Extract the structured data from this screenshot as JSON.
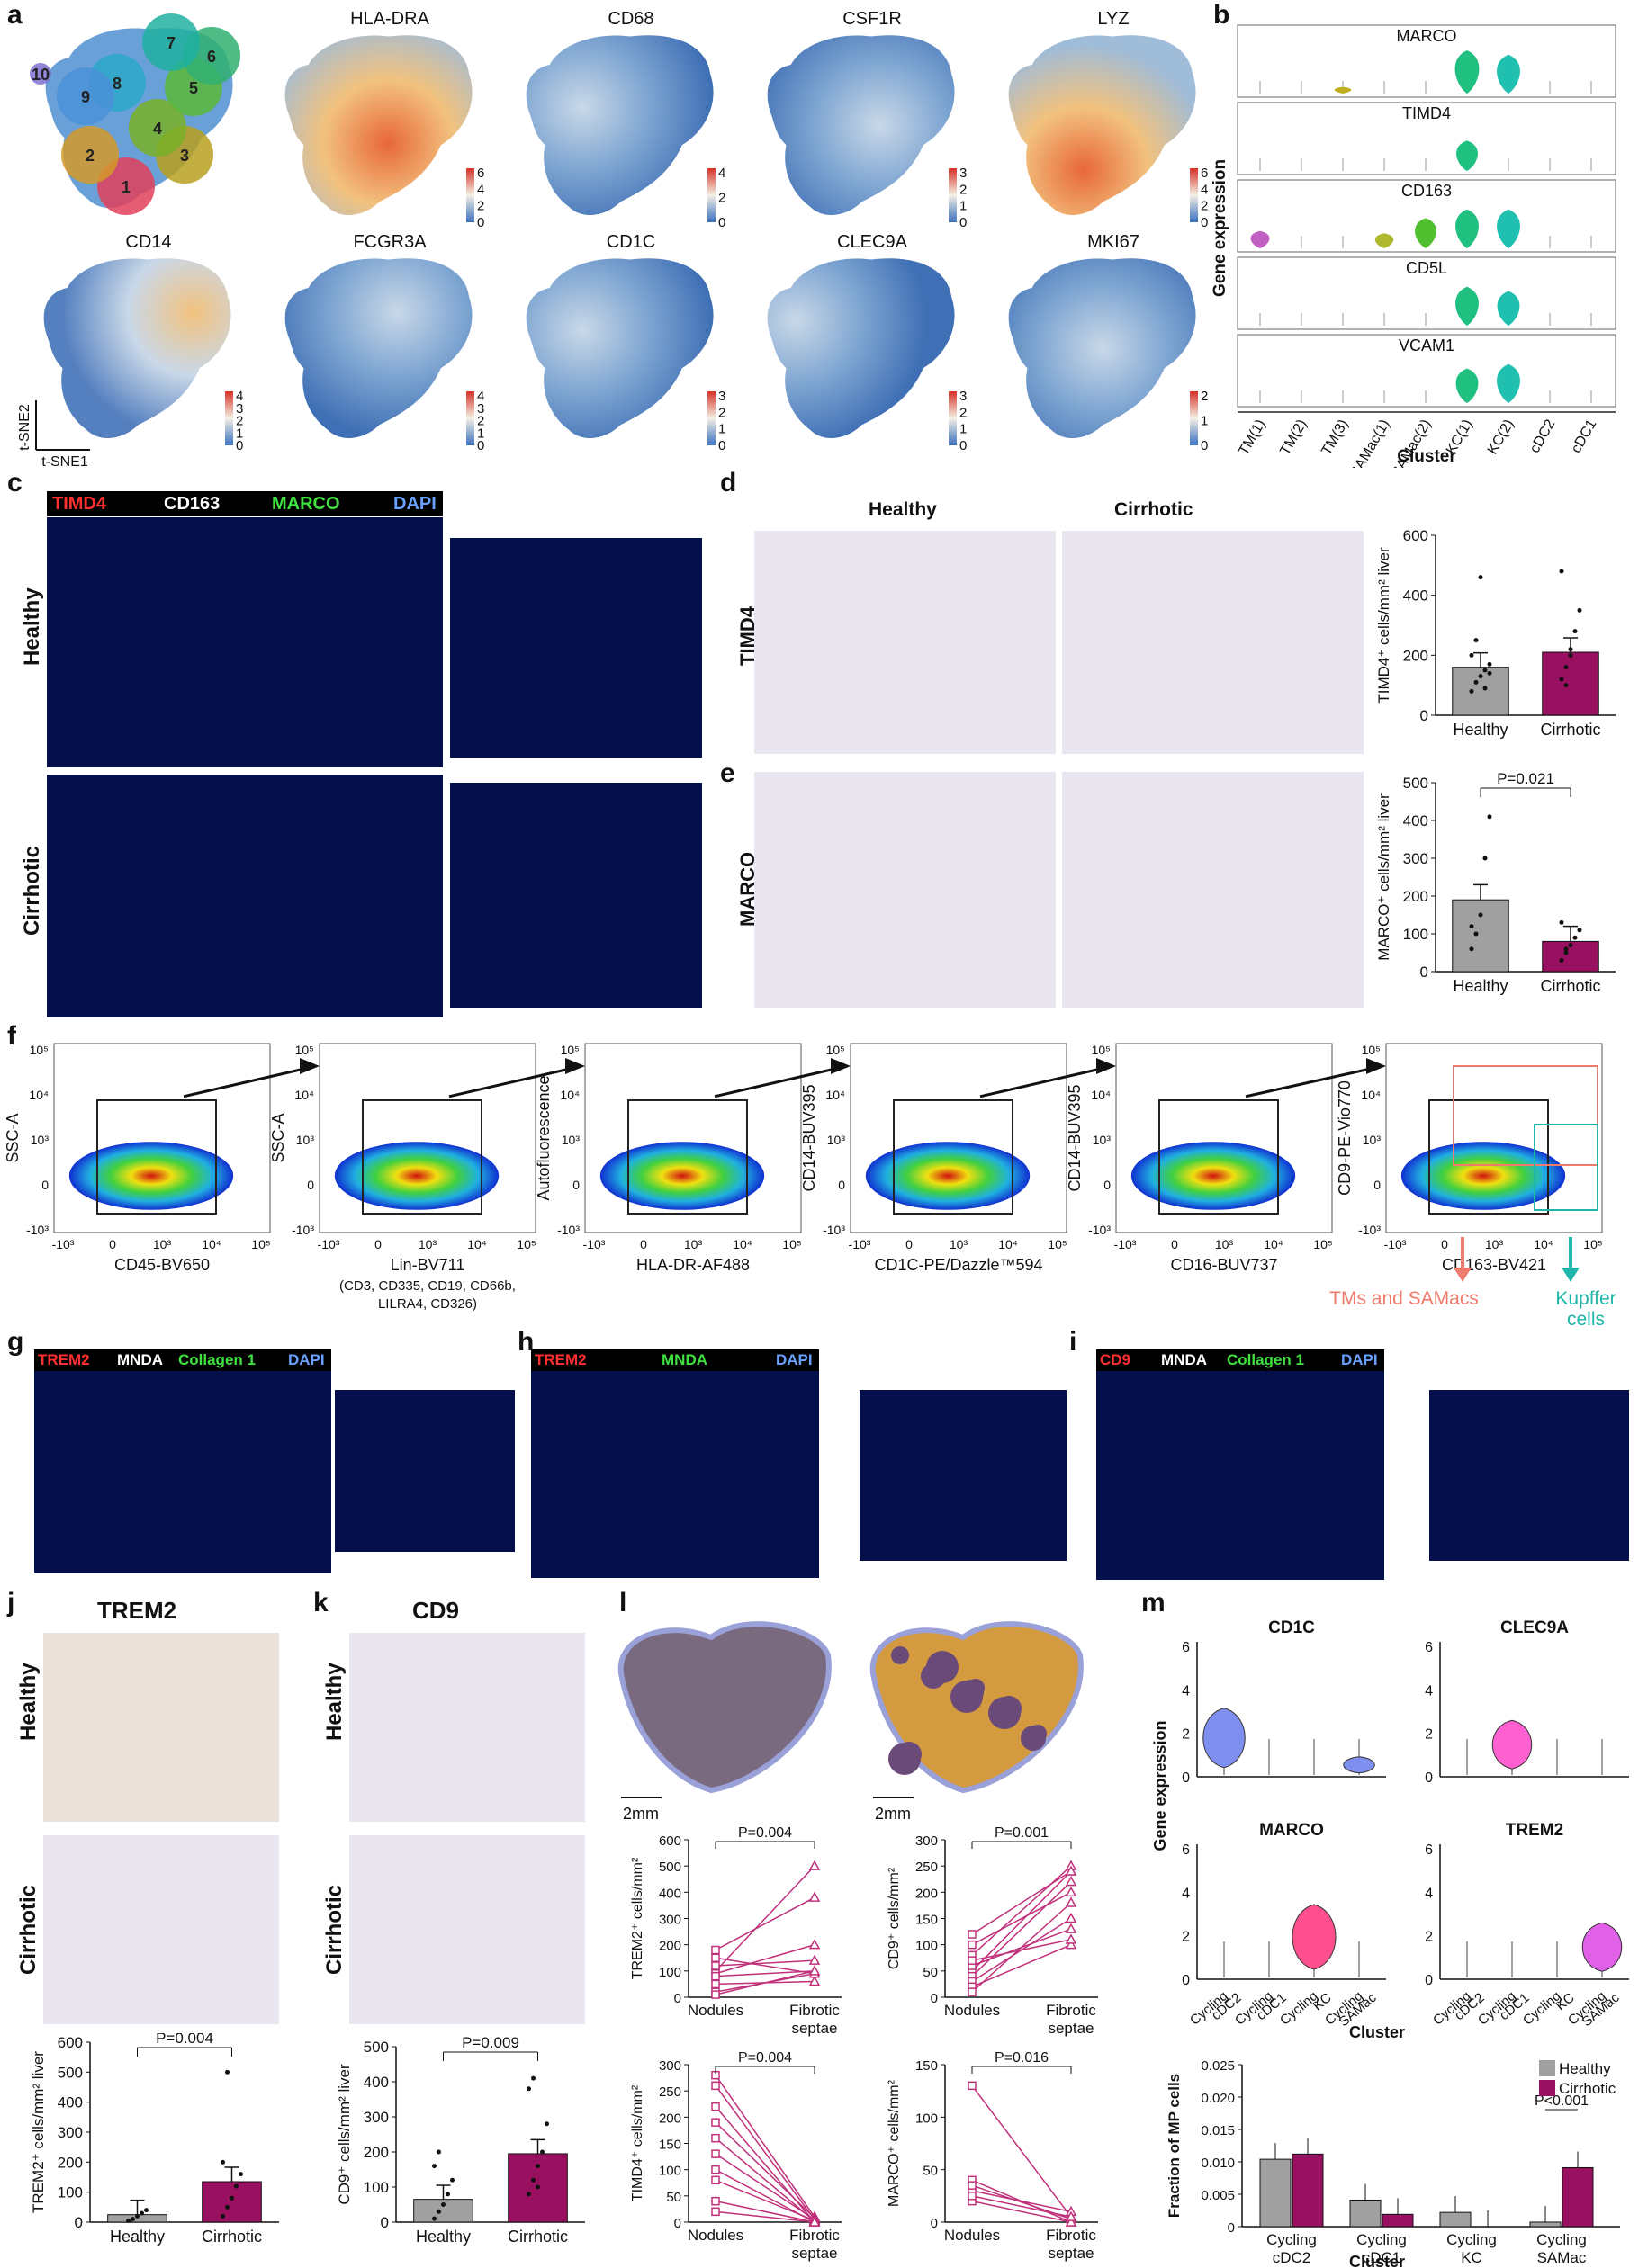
{
  "panel_a": {
    "label": "a",
    "genes": [
      "HLA-DRA",
      "CD68",
      "CSF1R",
      "LYZ",
      "CD14",
      "FCGR3A",
      "CD1C",
      "CLEC9A",
      "MKI67"
    ],
    "cluster_labels": [
      "1",
      "2",
      "3",
      "4",
      "5",
      "6",
      "7",
      "8",
      "9",
      "10"
    ],
    "scales": [
      [
        "6",
        "4",
        "2",
        "0"
      ],
      [
        "4",
        "2",
        "0"
      ],
      [
        "3",
        "2",
        "1",
        "0"
      ],
      [
        "6",
        "4",
        "2",
        "0"
      ],
      [
        "4",
        "3",
        "2",
        "1",
        "0"
      ],
      [
        "4",
        "3",
        "2",
        "1",
        "0"
      ],
      [
        "3",
        "2",
        "1",
        "0"
      ],
      [
        "3",
        "2",
        "1",
        "0"
      ],
      [
        "2",
        "1",
        "0"
      ]
    ],
    "axis_x": "t-SNE1",
    "axis_y": "t-SNE2",
    "colors": {
      "c1": "#e0405a",
      "c2": "#d39a2a",
      "c3": "#b8a020",
      "c4": "#78b028",
      "c5": "#5ab838",
      "c6": "#30b070",
      "c7": "#20b0a0",
      "c8": "#2aa8c8",
      "c9": "#4a90d8",
      "c10": "#8070d0"
    }
  },
  "panel_b": {
    "label": "b",
    "genes": [
      "MARCO",
      "TIMD4",
      "CD163",
      "CD5L",
      "VCAM1"
    ],
    "ylabel": "Gene expression",
    "xlabel": "Cluster",
    "clusters": [
      "TM(1)",
      "TM(2)",
      "TM(3)",
      "SAMac(1)",
      "SAMac(2)",
      "KC(1)",
      "KC(2)",
      "cDC2",
      "cDC1"
    ]
  },
  "panel_c": {
    "label": "c",
    "legend": [
      {
        "text": "TIMD4",
        "color": "#ff3030"
      },
      {
        "text": "CD163",
        "color": "#ffffff"
      },
      {
        "text": "MARCO",
        "color": "#40e040"
      },
      {
        "text": "DAPI",
        "color": "#6aa0ff"
      }
    ],
    "rows": [
      "Healthy",
      "Cirrhotic"
    ]
  },
  "panel_d": {
    "label": "d",
    "cols": [
      "Healthy",
      "Cirrhotic"
    ],
    "row": "TIMD4",
    "ylabel": "TIMD4⁺ cells/mm² liver",
    "yticks": [
      "0",
      "200",
      "400",
      "600"
    ],
    "categories": [
      "Healthy",
      "Cirrhotic"
    ]
  },
  "panel_e": {
    "label": "e",
    "row": "MARCO",
    "ylabel": "MARCO⁺ cells/mm² liver",
    "yticks": [
      "0",
      "100",
      "200",
      "300",
      "400",
      "500"
    ],
    "categories": [
      "Healthy",
      "Cirrhotic"
    ],
    "pvalue": "P=0.021"
  },
  "panel_f": {
    "label": "f",
    "plots": [
      {
        "x": "CD45-BV650",
        "y": "SSC-A"
      },
      {
        "x": "Lin-BV711",
        "y": "SSC-A",
        "sub": "(CD3, CD335, CD19, CD66b,\nLILRA4, CD326)"
      },
      {
        "x": "HLA-DR-AF488",
        "y": "Autofluorescence"
      },
      {
        "x": "CD1C-PE/Dazzle™594",
        "y": "CD14-BUV395"
      },
      {
        "x": "CD16-BUV737",
        "y": "CD14-BUV395"
      },
      {
        "x": "CD163-BV421",
        "y": "CD9-PE-Vio770"
      }
    ],
    "ticks_y": [
      "10⁵",
      "10⁴",
      "10³",
      "0",
      "-10³"
    ],
    "ticks_x": [
      "-10³",
      "0",
      "10³",
      "10⁴",
      "10⁵"
    ],
    "gate_a": "TMs and SAMacs",
    "gate_b": "Kupffer cells",
    "gate_a_color": "#ef7b6e",
    "gate_b_color": "#1fb5a8"
  },
  "panel_g": {
    "label": "g",
    "legend": [
      {
        "text": "TREM2",
        "color": "#ff3030"
      },
      {
        "text": "MNDA",
        "color": "#ffffff"
      },
      {
        "text": "Collagen 1",
        "color": "#40e040"
      },
      {
        "text": "DAPI",
        "color": "#6aa0ff"
      }
    ]
  },
  "panel_h": {
    "label": "h",
    "legend": [
      {
        "text": "TREM2",
        "color": "#ff3030"
      },
      {
        "text": "MNDA",
        "color": "#40e040"
      },
      {
        "text": "DAPI",
        "color": "#6aa0ff"
      }
    ]
  },
  "panel_i": {
    "label": "i",
    "legend": [
      {
        "text": "CD9",
        "color": "#ff3030"
      },
      {
        "text": "MNDA",
        "color": "#ffffff"
      },
      {
        "text": "Collagen 1",
        "color": "#40e040"
      },
      {
        "text": "DAPI",
        "color": "#6aa0ff"
      }
    ]
  },
  "panel_j": {
    "label": "j",
    "title": "TREM2",
    "rows": [
      "Healthy",
      "Cirrhotic"
    ],
    "ylabel": "TREM2⁺ cells/mm² liver",
    "yticks": [
      "0",
      "100",
      "200",
      "300",
      "400",
      "500",
      "600"
    ],
    "categories": [
      "Healthy",
      "Cirrhotic"
    ],
    "pvalue": "P=0.004"
  },
  "panel_k": {
    "label": "k",
    "title": "CD9",
    "rows": [
      "Healthy",
      "Cirrhotic"
    ],
    "ylabel": "CD9⁺ cells/mm² liver",
    "yticks": [
      "0",
      "100",
      "200",
      "300",
      "400",
      "500"
    ],
    "categories": [
      "Healthy",
      "Cirrhotic"
    ],
    "pvalue": "P=0.009"
  },
  "panel_l": {
    "label": "l",
    "scale": "2mm",
    "plots": [
      {
        "ylabel": "TREM2⁺ cells/mm²",
        "yticks": [
          "0",
          "100",
          "200",
          "300",
          "400",
          "500",
          "600"
        ],
        "pvalue": "P=0.004"
      },
      {
        "ylabel": "CD9⁺ cells/mm²",
        "yticks": [
          "0",
          "50",
          "100",
          "150",
          "200",
          "250",
          "300"
        ],
        "pvalue": "P=0.001"
      },
      {
        "ylabel": "TIMD4⁺ cells/mm²",
        "yticks": [
          "0",
          "50",
          "100",
          "150",
          "200",
          "250",
          "300"
        ],
        "pvalue": "P=0.004"
      },
      {
        "ylabel": "MARCO⁺ cells/mm²",
        "yticks": [
          "0",
          "50",
          "100",
          "150"
        ],
        "pvalue": "P=0.016"
      }
    ],
    "cat1": "Nodules",
    "cat2a": "Fibrotic",
    "cat2b": "septae"
  },
  "panel_m": {
    "label": "m",
    "genes": [
      "CD1C",
      "CLEC9A",
      "MARCO",
      "TREM2"
    ],
    "ylabel": "Gene expression",
    "yticks": [
      "0",
      "2",
      "4",
      "6"
    ],
    "clusters": [
      [
        "Cycling",
        "cDC2"
      ],
      [
        "Cycling",
        "cDC1"
      ],
      [
        "Cycling",
        "KC"
      ],
      [
        "Cycling",
        "SAMac"
      ]
    ],
    "xlabel": "Cluster",
    "bar_ylabel": "Fraction of MP cells",
    "bar_yticks": [
      "0",
      "0.005",
      "0.010",
      "0.015",
      "0.020",
      "0.025"
    ],
    "legend": [
      {
        "text": "Healthy",
        "color": "#a0a0a0"
      },
      {
        "text": "Cirrhotic",
        "color": "#9a1060"
      }
    ],
    "pvalue": "P<0.001"
  },
  "chart_data": [
    {
      "type": "bar",
      "categories": [
        "Healthy",
        "Cirrhotic"
      ],
      "values": [
        160,
        210
      ],
      "ylabel": "TIMD4⁺ cells/mm² liver",
      "ylim": [
        0,
        600
      ]
    },
    {
      "type": "bar",
      "categories": [
        "Healthy",
        "Cirrhotic"
      ],
      "values": [
        190,
        80
      ],
      "ylabel": "MARCO⁺ cells/mm² liver",
      "ylim": [
        0,
        500
      ]
    },
    {
      "type": "bar",
      "categories": [
        "Healthy",
        "Cirrhotic"
      ],
      "values": [
        25,
        135
      ],
      "ylabel": "TREM2⁺ cells/mm² liver",
      "ylim": [
        0,
        600
      ]
    },
    {
      "type": "bar",
      "categories": [
        "Healthy",
        "Cirrhotic"
      ],
      "values": [
        65,
        195
      ],
      "ylabel": "CD9⁺ cells/mm² liver",
      "ylim": [
        0,
        500
      ]
    },
    {
      "type": "bar",
      "categories": [
        "Cycling cDC2",
        "Cycling cDC1",
        "Cycling KC",
        "Cycling SAMac"
      ],
      "series": [
        {
          "name": "Healthy",
          "values": [
            0.0104,
            0.0041,
            0.0022,
            0.0007
          ]
        },
        {
          "name": "Cirrhotic",
          "values": [
            0.0112,
            0.0019,
            0.0,
            0.0091
          ]
        }
      ],
      "ylabel": "Fraction of MP cells",
      "ylim": [
        0,
        0.025
      ]
    }
  ]
}
